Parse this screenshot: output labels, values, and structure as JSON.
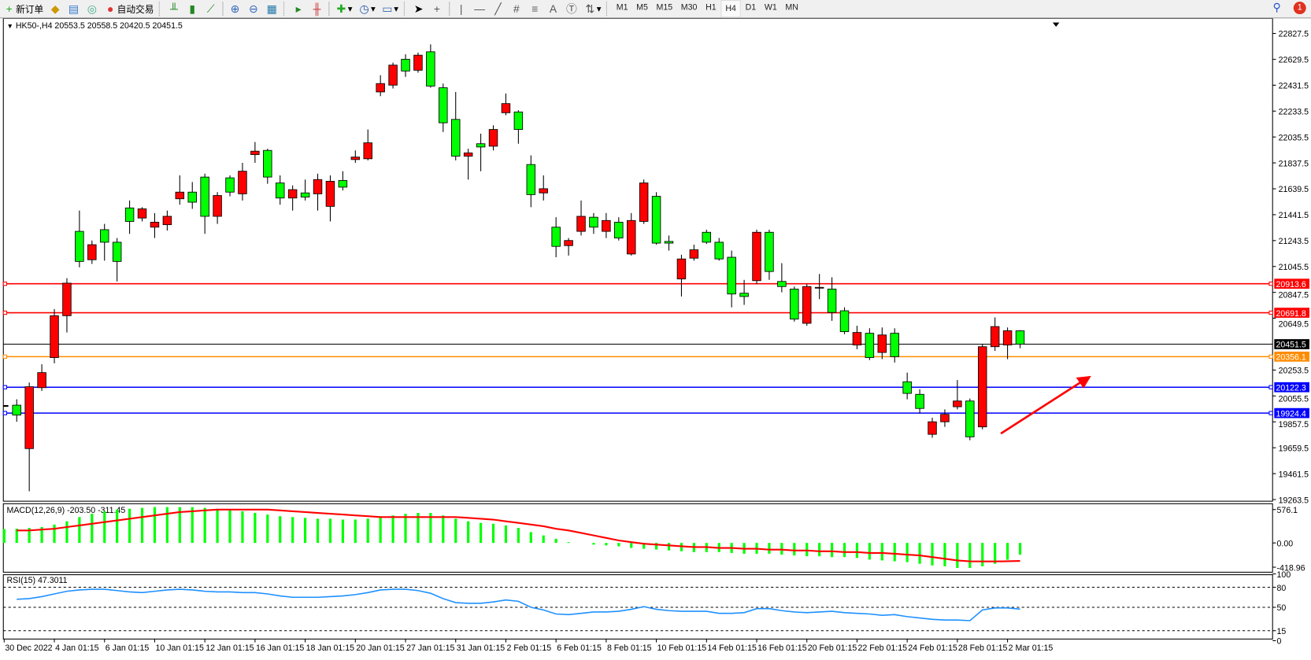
{
  "toolbar": {
    "new_order": "新订单",
    "auto_trading": "自动交易",
    "timeframes": [
      "M1",
      "M5",
      "M15",
      "M30",
      "H1",
      "H4",
      "D1",
      "W1",
      "MN"
    ],
    "active_timeframe": "H4",
    "notification_count": "1",
    "icons": [
      "new-order-icon",
      "market-watch-icon",
      "data-window-icon",
      "signals-icon",
      "auto-trading-icon",
      "bar-chart-icon",
      "candlestick-icon",
      "line-chart-icon",
      "zoom-in-icon",
      "zoom-out-icon",
      "tile-windows-icon",
      "autoscroll-icon",
      "chart-shift-icon",
      "indicators-icon",
      "periods-icon",
      "templates-icon",
      "cursor-icon",
      "crosshair-icon",
      "vertical-line-icon",
      "horizontal-line-icon",
      "trendline-icon",
      "equidistant-channel-icon",
      "fibonacci-icon",
      "text-icon",
      "text-label-icon",
      "arrows-icon",
      "search-icon",
      "notification-icon"
    ]
  },
  "chart": {
    "header": "HK50-,H4  20553.5 20558.5 20420.5 20451.5",
    "colors": {
      "bull": "#ff0000",
      "bear": "#00ff00",
      "macd_hist": "#00ff00",
      "signal": "#ff0000",
      "rsi": "#1e90ff"
    },
    "price_ticks": [
      "22827.5",
      "22629.5",
      "22431.5",
      "22233.5",
      "22035.5",
      "21837.5",
      "21639.5",
      "21441.5",
      "21243.5",
      "21045.5",
      "20847.5",
      "20649.5",
      "20253.5",
      "20055.5",
      "19857.5",
      "19659.5",
      "19461.5",
      "19263.5"
    ],
    "price_range": [
      19263.5,
      22827.5
    ],
    "levels": [
      {
        "price": 20913.6,
        "label": "20913.6",
        "color": "#ff0000"
      },
      {
        "price": 20691.8,
        "label": "20691.8",
        "color": "#ff0000"
      },
      {
        "price": 20451.5,
        "label": "20451.5",
        "color": "#000000"
      },
      {
        "price": 20356.1,
        "label": "20356.1",
        "color": "#ff8c00"
      },
      {
        "price": 20122.3,
        "label": "20122.3",
        "color": "#0000ff"
      },
      {
        "price": 19924.4,
        "label": "19924.4",
        "color": "#0000ff"
      }
    ],
    "ohlc": [
      [
        19985,
        20030,
        19858,
        19909
      ],
      [
        19653,
        20158,
        19327,
        20126
      ],
      [
        20119,
        20298,
        20094,
        20234
      ],
      [
        20349,
        20720,
        20305,
        20669
      ],
      [
        20669,
        20956,
        20541,
        20918
      ],
      [
        21314,
        21473,
        21039,
        21084
      ],
      [
        21097,
        21244,
        21065,
        21212
      ],
      [
        21327,
        21371,
        21090,
        21231
      ],
      [
        21231,
        21263,
        20931,
        21084
      ],
      [
        21493,
        21550,
        21295,
        21390
      ],
      [
        21416,
        21499,
        21390,
        21486
      ],
      [
        21346,
        21454,
        21263,
        21384
      ],
      [
        21365,
        21473,
        21320,
        21429
      ],
      [
        21563,
        21742,
        21518,
        21614
      ],
      [
        21614,
        21691,
        21486,
        21537
      ],
      [
        21729,
        21755,
        21295,
        21429
      ],
      [
        21429,
        21614,
        21371,
        21588
      ],
      [
        21723,
        21742,
        21582,
        21614
      ],
      [
        21601,
        21838,
        21550,
        21774
      ],
      [
        21901,
        21997,
        21838,
        21927
      ],
      [
        21933,
        21946,
        21678,
        21729
      ],
      [
        21684,
        21742,
        21518,
        21569
      ],
      [
        21569,
        21665,
        21473,
        21633
      ],
      [
        21608,
        21710,
        21550,
        21576
      ],
      [
        21601,
        21755,
        21473,
        21710
      ],
      [
        21505,
        21742,
        21390,
        21697
      ],
      [
        21703,
        21774,
        21627,
        21652
      ],
      [
        21863,
        21933,
        21838,
        21882
      ],
      [
        21869,
        22093,
        21857,
        21991
      ],
      [
        22380,
        22508,
        22348,
        22444
      ],
      [
        22432,
        22604,
        22406,
        22585
      ],
      [
        22630,
        22668,
        22495,
        22540
      ],
      [
        22546,
        22681,
        22527,
        22661
      ],
      [
        22687,
        22744,
        22412,
        22425
      ],
      [
        22412,
        22444,
        22074,
        22144
      ],
      [
        22170,
        22380,
        21857,
        21889
      ],
      [
        21889,
        21946,
        21710,
        21914
      ],
      [
        21984,
        22061,
        21774,
        21959
      ],
      [
        21965,
        22125,
        21933,
        22093
      ],
      [
        22221,
        22368,
        22202,
        22291
      ],
      [
        22227,
        22240,
        21984,
        22093
      ],
      [
        21825,
        21895,
        21499,
        21595
      ],
      [
        21608,
        21742,
        21550,
        21640
      ],
      [
        21346,
        21422,
        21116,
        21199
      ],
      [
        21205,
        21263,
        21129,
        21244
      ],
      [
        21314,
        21550,
        21282,
        21429
      ],
      [
        21422,
        21454,
        21295,
        21346
      ],
      [
        21314,
        21454,
        21263,
        21397
      ],
      [
        21384,
        21422,
        21244,
        21263
      ],
      [
        21141,
        21454,
        21129,
        21397
      ],
      [
        21390,
        21710,
        21371,
        21684
      ],
      [
        21582,
        21614,
        21212,
        21224
      ],
      [
        21237,
        21282,
        21167,
        21224
      ],
      [
        20950,
        21135,
        20816,
        21103
      ],
      [
        21109,
        21212,
        21090,
        21173
      ],
      [
        21307,
        21327,
        21218,
        21231
      ],
      [
        21231,
        21263,
        21090,
        21103
      ],
      [
        21116,
        21167,
        20733,
        20835
      ],
      [
        20841,
        20943,
        20752,
        20816
      ],
      [
        20937,
        21327,
        20911,
        21307
      ],
      [
        21307,
        21327,
        20943,
        21007
      ],
      [
        20931,
        21071,
        20848,
        20892
      ],
      [
        20873,
        20892,
        20624,
        20643
      ],
      [
        20611,
        20911,
        20592,
        20892
      ],
      [
        20880,
        20988,
        20796,
        20886
      ],
      [
        20873,
        20963,
        20630,
        20694
      ],
      [
        20707,
        20733,
        20528,
        20547
      ],
      [
        20445,
        20592,
        20413,
        20541
      ],
      [
        20535,
        20573,
        20330,
        20349
      ],
      [
        20388,
        20579,
        20337,
        20522
      ],
      [
        20535,
        20573,
        20311,
        20356
      ],
      [
        20164,
        20234,
        20030,
        20075
      ],
      [
        20068,
        20107,
        19921,
        19960
      ],
      [
        19762,
        19889,
        19736,
        19858
      ],
      [
        19858,
        19953,
        19819,
        19915
      ],
      [
        19973,
        20177,
        19953,
        20017
      ],
      [
        20017,
        20036,
        19717,
        19743
      ],
      [
        19819,
        20452,
        19800,
        20432
      ],
      [
        20432,
        20656,
        20400,
        20586
      ],
      [
        20445,
        20579,
        20337,
        20554
      ],
      [
        20553.5,
        20558.5,
        20420.5,
        20451.5
      ]
    ],
    "date_labels": [
      "30 Dec 2022",
      "4 Jan 01:15",
      "6 Jan 01:15",
      "10 Jan 01:15",
      "12 Jan 01:15",
      "16 Jan 01:15",
      "18 Jan 01:15",
      "20 Jan 01:15",
      "27 Jan 01:15",
      "31 Jan 01:15",
      "2 Feb 01:15",
      "6 Feb 01:15",
      "8 Feb 01:15",
      "10 Feb 01:15",
      "14 Feb 01:15",
      "16 Feb 01:15",
      "20 Feb 01:15",
      "22 Feb 01:15",
      "24 Feb 01:15",
      "28 Feb 01:15",
      "2 Mar 01:15"
    ]
  },
  "macd": {
    "label": "MACD(12,26,9) -203.50 -311.45",
    "ticks": [
      "576.1",
      "0.00",
      "-418.96"
    ],
    "range": [
      -418.96,
      576.1
    ],
    "histogram": [
      245,
      259,
      274,
      317,
      374,
      446,
      504,
      547,
      576,
      590,
      605,
      619,
      619,
      619,
      619,
      605,
      590,
      576,
      547,
      518,
      490,
      461,
      446,
      432,
      418,
      418,
      403,
      403,
      418,
      461,
      475,
      504,
      518,
      518,
      475,
      418,
      374,
      346,
      331,
      302,
      259,
      187,
      130,
      72,
      14,
      0,
      -29,
      -43,
      -58,
      -86,
      -101,
      -115,
      -130,
      -144,
      -158,
      -158,
      -158,
      -173,
      -187,
      -187,
      -187,
      -202,
      -216,
      -230,
      -230,
      -245,
      -245,
      -259,
      -288,
      -302,
      -317,
      -331,
      -360,
      -389,
      -403,
      -432,
      -432,
      -403,
      -360,
      -290,
      -203.5
    ],
    "signal": [
      216,
      216,
      230,
      245,
      274,
      302,
      331,
      360,
      389,
      418,
      446,
      475,
      504,
      533,
      547,
      562,
      576,
      576,
      576,
      576,
      576,
      562,
      547,
      533,
      518,
      504,
      490,
      475,
      461,
      446,
      446,
      446,
      446,
      446,
      446,
      446,
      432,
      418,
      403,
      374,
      346,
      317,
      288,
      245,
      216,
      173,
      130,
      86,
      43,
      14,
      -14,
      -29,
      -43,
      -58,
      -72,
      -72,
      -86,
      -86,
      -101,
      -101,
      -115,
      -115,
      -130,
      -130,
      -144,
      -144,
      -158,
      -158,
      -173,
      -173,
      -187,
      -202,
      -216,
      -245,
      -274,
      -302,
      -317,
      -320,
      -320,
      -316,
      -311.45
    ]
  },
  "rsi": {
    "label": "RSI(15) 47.3011",
    "ticks": [
      "100",
      "80",
      "50",
      "15",
      "0"
    ],
    "levels": [
      80,
      50,
      15
    ],
    "values": [
      62,
      63,
      66,
      70,
      74,
      76,
      77,
      77,
      75,
      73,
      72,
      74,
      76,
      77,
      76,
      74,
      73,
      73,
      72,
      72,
      70,
      67,
      65,
      65,
      65,
      66,
      67,
      69,
      72,
      76,
      77,
      77,
      75,
      71,
      63,
      57,
      56,
      56,
      58,
      61,
      59,
      50,
      46,
      40,
      39,
      41,
      43,
      43,
      44,
      47,
      51,
      47,
      45,
      44,
      44,
      44,
      41,
      41,
      42,
      48,
      48,
      45,
      43,
      42,
      43,
      44,
      42,
      41,
      40,
      38,
      39,
      36,
      34,
      32,
      31,
      31,
      30,
      46,
      49,
      49,
      47.3011
    ]
  }
}
